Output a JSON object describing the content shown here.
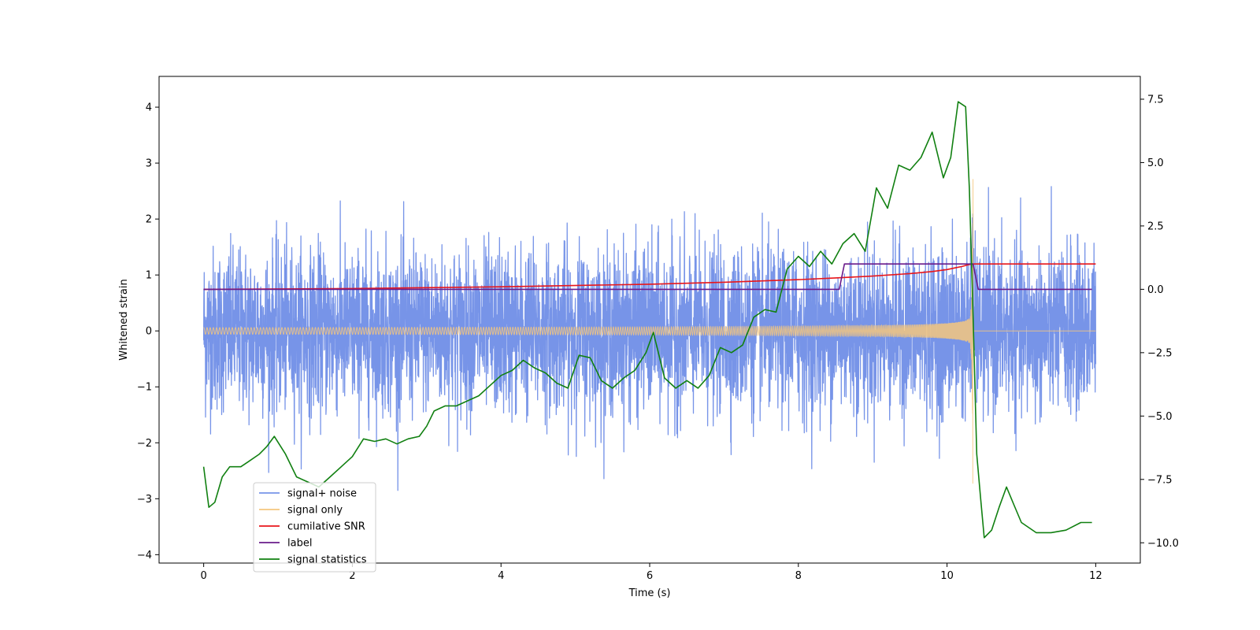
{
  "chart_data": {
    "type": "line",
    "title": "",
    "xlabel": "Time (s)",
    "ylabel": "Whitened strain",
    "y2label": "",
    "xlim": [
      -0.6,
      12.6
    ],
    "ylim": [
      -4.15,
      4.55
    ],
    "y2lim": [
      -10.8,
      8.4
    ],
    "xticks": [
      0,
      2,
      4,
      6,
      8,
      10,
      12
    ],
    "xtick_labels": [
      "0",
      "2",
      "4",
      "6",
      "8",
      "10",
      "12"
    ],
    "yticks": [
      -4,
      -3,
      -2,
      -1,
      0,
      1,
      2,
      3,
      4
    ],
    "ytick_labels": [
      "−4",
      "−3",
      "−2",
      "−1",
      "0",
      "1",
      "2",
      "3",
      "4"
    ],
    "y2ticks": [
      -10,
      -7.5,
      -5,
      -2.5,
      0,
      2.5,
      5,
      7.5
    ],
    "y2tick_labels": [
      "−10.0",
      "−7.5",
      "−5.0",
      "−2.5",
      "0.0",
      "2.5",
      "5.0",
      "7.5"
    ],
    "grid": false,
    "legend_position": "lower-left",
    "series": [
      {
        "name": "signal+ noise",
        "color": "#7794e8",
        "axis": "left",
        "kind": "noise",
        "t_range": [
          0,
          12
        ],
        "noise_std": 0.72,
        "points": 4800
      },
      {
        "name": "signal only",
        "color": "#f5c77e",
        "axis": "left",
        "kind": "chirp",
        "t_range": [
          0,
          12
        ],
        "t_merge": 10.35,
        "peak_amplitude": 2.8
      },
      {
        "name": "cumilative SNR",
        "color": "#e8161b",
        "axis": "right",
        "x": [
          0,
          2,
          4,
          6,
          7,
          8,
          8.5,
          9,
          9.5,
          9.8,
          10,
          10.1,
          10.2,
          10.3,
          10.35,
          10.4,
          11,
          12
        ],
        "values": [
          0.0,
          0.03,
          0.1,
          0.2,
          0.28,
          0.38,
          0.45,
          0.52,
          0.62,
          0.7,
          0.78,
          0.84,
          0.9,
          0.98,
          1.0,
          1.0,
          1.0,
          1.0
        ]
      },
      {
        "name": "label",
        "color": "#6a1b8a",
        "axis": "right",
        "x": [
          0,
          8.55,
          8.62,
          10.35,
          10.42,
          11.95
        ],
        "values": [
          0,
          0,
          1,
          1,
          0,
          0
        ]
      },
      {
        "name": "signal statistics",
        "color": "#118011",
        "axis": "right",
        "x": [
          0,
          0.07,
          0.15,
          0.25,
          0.35,
          0.5,
          0.6,
          0.75,
          0.85,
          0.95,
          1.1,
          1.25,
          1.4,
          1.55,
          1.7,
          1.85,
          2.0,
          2.15,
          2.3,
          2.45,
          2.6,
          2.75,
          2.9,
          3.0,
          3.1,
          3.25,
          3.4,
          3.55,
          3.7,
          3.85,
          4.0,
          4.15,
          4.3,
          4.45,
          4.6,
          4.75,
          4.9,
          5.05,
          5.2,
          5.35,
          5.5,
          5.65,
          5.8,
          5.95,
          6.05,
          6.2,
          6.35,
          6.5,
          6.65,
          6.8,
          6.95,
          7.1,
          7.25,
          7.4,
          7.55,
          7.7,
          7.85,
          8.0,
          8.15,
          8.3,
          8.45,
          8.6,
          8.75,
          8.9,
          9.05,
          9.2,
          9.35,
          9.5,
          9.65,
          9.8,
          9.95,
          10.05,
          10.15,
          10.25,
          10.3,
          10.35,
          10.4,
          10.45,
          10.5,
          10.6,
          10.7,
          10.8,
          10.9,
          11.0,
          11.2,
          11.4,
          11.6,
          11.8,
          11.95
        ],
        "values": [
          -7.0,
          -8.6,
          -8.4,
          -7.4,
          -7.0,
          -7.0,
          -6.8,
          -6.5,
          -6.2,
          -5.8,
          -6.5,
          -7.4,
          -7.6,
          -7.8,
          -7.4,
          -7.0,
          -6.6,
          -5.9,
          -6.0,
          -5.9,
          -6.1,
          -5.9,
          -5.8,
          -5.4,
          -4.8,
          -4.6,
          -4.6,
          -4.4,
          -4.2,
          -3.8,
          -3.4,
          -3.2,
          -2.8,
          -3.1,
          -3.3,
          -3.7,
          -3.9,
          -2.6,
          -2.7,
          -3.6,
          -3.9,
          -3.5,
          -3.2,
          -2.5,
          -1.7,
          -3.5,
          -3.9,
          -3.6,
          -3.9,
          -3.4,
          -2.3,
          -2.5,
          -2.2,
          -1.1,
          -0.8,
          -0.9,
          0.8,
          1.3,
          0.9,
          1.5,
          1.0,
          1.8,
          2.2,
          1.5,
          4.0,
          3.2,
          4.9,
          4.7,
          5.2,
          6.2,
          4.4,
          5.2,
          7.4,
          7.2,
          4.0,
          -1.0,
          -6.5,
          -8.2,
          -9.8,
          -9.5,
          -8.6,
          -7.8,
          -8.5,
          -9.2,
          -9.6,
          -9.6,
          -9.5,
          -9.2,
          -9.2
        ]
      }
    ]
  }
}
